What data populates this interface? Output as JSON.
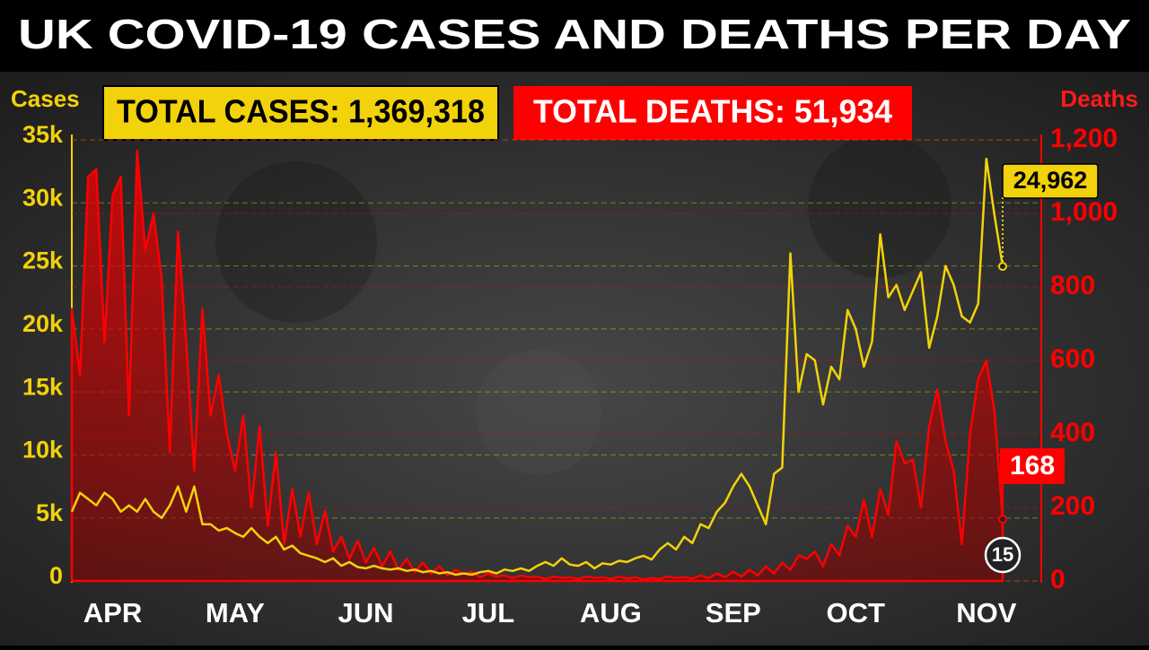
{
  "chart_data": {
    "type": "line",
    "title": "UK COVID-19 CASES AND DEATHS PER DAY",
    "totals": [
      "TOTAL CASES: 1,369,318",
      "TOTAL DEATHS: 51,934"
    ],
    "y_label": "Cases",
    "y2_label": "Deaths",
    "categories": [
      null,
      null,
      null,
      null,
      null,
      "APR",
      null,
      null,
      null,
      null,
      null,
      null,
      null,
      null,
      null,
      null,
      null,
      null,
      null,
      null,
      "MAY",
      null,
      null,
      null,
      null,
      null,
      null,
      null,
      null,
      null,
      null,
      null,
      null,
      null,
      null,
      null,
      "JUN",
      null,
      null,
      null,
      null,
      null,
      null,
      null,
      null,
      null,
      null,
      null,
      null,
      null,
      null,
      "JUL",
      null,
      null,
      null,
      null,
      null,
      null,
      null,
      null,
      null,
      null,
      null,
      null,
      null,
      null,
      "AUG",
      null,
      null,
      null,
      null,
      null,
      null,
      null,
      null,
      null,
      null,
      null,
      null,
      null,
      null,
      "SEP",
      null,
      null,
      null,
      null,
      null,
      null,
      null,
      null,
      null,
      null,
      null,
      null,
      null,
      null,
      "OCT",
      null,
      null,
      null,
      null,
      null,
      null,
      null,
      null,
      null,
      null,
      null,
      null,
      null,
      null,
      null,
      "NOV",
      null,
      null
    ],
    "series": [
      {
        "name": "Cases",
        "type": "line",
        "color": "#f2d20a",
        "axis": "y",
        "values": [
          5500,
          7000,
          6500,
          6000,
          7000,
          6500,
          5500,
          6000,
          5500,
          6500,
          5500,
          5000,
          6000,
          7500,
          5500,
          7500,
          4500,
          4500,
          4000,
          4200,
          3800,
          3500,
          4200,
          3500,
          3000,
          3500,
          2500,
          2800,
          2200,
          2000,
          1800,
          1500,
          1800,
          1200,
          1500,
          1100,
          1000,
          1200,
          1000,
          900,
          1000,
          800,
          900,
          700,
          800,
          600,
          700,
          500,
          600,
          500,
          700,
          800,
          600,
          900,
          800,
          1000,
          800,
          1200,
          1500,
          1200,
          1800,
          1300,
          1200,
          1500,
          1000,
          1400,
          1300,
          1600,
          1500,
          1800,
          2000,
          1700,
          2500,
          3000,
          2500,
          3500,
          3000,
          4500,
          4200,
          5500,
          6200,
          7500,
          8500,
          7500,
          6000,
          4500,
          8500,
          9000,
          26000,
          15000,
          18000,
          17500,
          14000,
          17000,
          16000,
          21500,
          20000,
          17000,
          19000,
          27500,
          22500,
          23500,
          21500,
          23000,
          24500,
          18500,
          21000,
          25000,
          23500,
          21000,
          20500,
          22000,
          33500,
          29000,
          24962
        ]
      },
      {
        "name": "Deaths",
        "type": "area",
        "color": "#ff0000",
        "axis": "y2",
        "values": [
          740,
          560,
          1100,
          1120,
          650,
          1050,
          1100,
          450,
          1170,
          900,
          1000,
          820,
          350,
          950,
          650,
          300,
          740,
          450,
          560,
          400,
          300,
          450,
          200,
          420,
          150,
          350,
          100,
          250,
          120,
          240,
          100,
          190,
          80,
          120,
          60,
          110,
          50,
          90,
          40,
          80,
          30,
          60,
          25,
          50,
          20,
          40,
          15,
          30,
          20,
          25,
          10,
          20,
          12,
          15,
          8,
          15,
          10,
          12,
          5,
          12,
          8,
          10,
          5,
          12,
          8,
          10,
          5,
          12,
          6,
          10,
          4,
          8,
          5,
          12,
          8,
          10,
          6,
          15,
          8,
          20,
          10,
          25,
          12,
          30,
          15,
          40,
          20,
          50,
          30,
          70,
          60,
          80,
          40,
          100,
          70,
          150,
          120,
          220,
          120,
          250,
          180,
          380,
          320,
          330,
          200,
          420,
          520,
          380,
          300,
          100,
          400,
          550,
          600,
          460,
          168
        ]
      }
    ],
    "annotations": [
      "24,962",
      "168",
      "15"
    ],
    "ylim": [
      0,
      35000
    ],
    "yticks": [
      0,
      {
        "value": 5000,
        "label": "5k"
      },
      {
        "value": 10000,
        "label": "10k"
      },
      {
        "value": 15000,
        "label": "15k"
      },
      {
        "value": 20000,
        "label": "20k"
      },
      {
        "value": 25000,
        "label": "25k"
      },
      {
        "value": 30000,
        "label": "30k"
      },
      {
        "value": 35000,
        "label": "35k"
      }
    ],
    "y2lim": [
      0,
      1200
    ],
    "y2ticks": [
      0,
      200,
      400,
      600,
      800,
      {
        "value": 1000,
        "label": "1,000"
      },
      {
        "value": 1200,
        "label": "1,200"
      }
    ],
    "grid": true
  }
}
